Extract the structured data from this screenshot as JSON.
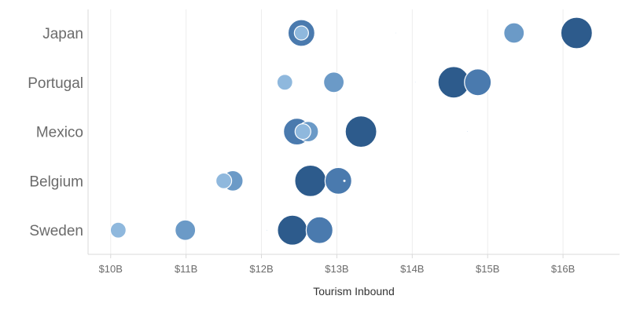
{
  "chart_data": {
    "type": "scatter",
    "title": "",
    "xlabel": "Tourism Inbound",
    "ylabel": "",
    "xlim": [
      9.7,
      16.75
    ],
    "x_ticks": [
      10,
      11,
      12,
      13,
      14,
      15,
      16
    ],
    "x_tick_labels": [
      "$10B",
      "$11B",
      "$12B",
      "$13B",
      "$14B",
      "$15B",
      "$16B"
    ],
    "categories": [
      "Japan",
      "Portugal",
      "Mexico",
      "Belgium",
      "Sweden"
    ],
    "grid": "vertical",
    "colors": {
      "dark": "#2d5b8c",
      "medium": "#4a7aae",
      "light": "#6b9ac7",
      "pale": "#8fb8dd"
    },
    "points": [
      {
        "category": "Japan",
        "x": 12.53,
        "size": 17,
        "color": "medium"
      },
      {
        "category": "Japan",
        "x": 12.53,
        "size": 9,
        "color": "pale"
      },
      {
        "category": "Japan",
        "x": 13.78,
        "size": 1,
        "color": "pale"
      },
      {
        "category": "Japan",
        "x": 15.35,
        "size": 13,
        "color": "light"
      },
      {
        "category": "Japan",
        "x": 16.18,
        "size": 20,
        "color": "dark"
      },
      {
        "category": "Portugal",
        "x": 12.31,
        "size": 10,
        "color": "pale"
      },
      {
        "category": "Portugal",
        "x": 12.96,
        "size": 13,
        "color": "light"
      },
      {
        "category": "Portugal",
        "x": 14.04,
        "size": 1,
        "color": "pale"
      },
      {
        "category": "Portugal",
        "x": 14.55,
        "size": 20,
        "color": "dark"
      },
      {
        "category": "Portugal",
        "x": 14.87,
        "size": 17,
        "color": "medium"
      },
      {
        "category": "Mexico",
        "x": 12.62,
        "size": 13,
        "color": "light"
      },
      {
        "category": "Mexico",
        "x": 12.47,
        "size": 17,
        "color": "medium"
      },
      {
        "category": "Mexico",
        "x": 12.55,
        "size": 10,
        "color": "pale"
      },
      {
        "category": "Mexico",
        "x": 13.32,
        "size": 20,
        "color": "dark"
      },
      {
        "category": "Mexico",
        "x": 14.73,
        "size": 1,
        "color": "pale"
      },
      {
        "category": "Belgium",
        "x": 11.5,
        "size": 10,
        "color": "pale"
      },
      {
        "category": "Belgium",
        "x": 11.62,
        "size": 13,
        "color": "light"
      },
      {
        "category": "Belgium",
        "x": 12.65,
        "size": 20,
        "color": "dark"
      },
      {
        "category": "Belgium",
        "x": 13.02,
        "size": 17,
        "color": "medium"
      },
      {
        "category": "Belgium",
        "x": 13.1,
        "size": 1,
        "color": "pale"
      },
      {
        "category": "Sweden",
        "x": 10.1,
        "size": 10,
        "color": "pale"
      },
      {
        "category": "Sweden",
        "x": 10.99,
        "size": 13,
        "color": "light"
      },
      {
        "category": "Sweden",
        "x": 12.07,
        "size": 1,
        "color": "pale"
      },
      {
        "category": "Sweden",
        "x": 12.41,
        "size": 19,
        "color": "dark"
      },
      {
        "category": "Sweden",
        "x": 12.77,
        "size": 17,
        "color": "medium"
      }
    ]
  }
}
